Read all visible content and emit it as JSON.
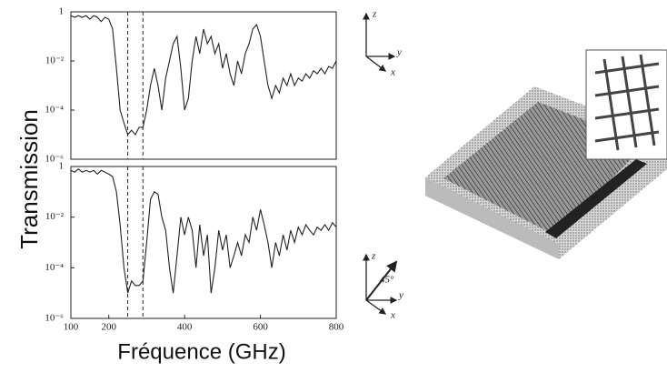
{
  "figure": {
    "ylabel": "Transmission",
    "xlabel": "Fréquence (GHz)"
  },
  "axes_icons": [
    {
      "labels": [
        "z",
        "y",
        "x"
      ]
    },
    {
      "labels": [
        "z",
        "45°",
        "y",
        "x"
      ]
    }
  ],
  "chart_data": [
    {
      "type": "line",
      "log_y": true,
      "xlim": [
        100,
        800
      ],
      "ylim": [
        1e-06,
        1
      ],
      "yticks": [
        1,
        {
          "value": 0.01,
          "label": "10⁻²"
        },
        {
          "value": 0.0001,
          "label": "10⁻⁴"
        },
        {
          "value": 1e-06,
          "label": "10⁻⁶"
        }
      ],
      "vlines": [
        250,
        290
      ],
      "x": [
        100,
        110,
        120,
        130,
        140,
        150,
        160,
        170,
        180,
        190,
        200,
        210,
        220,
        230,
        240,
        250,
        260,
        270,
        280,
        290,
        300,
        310,
        320,
        330,
        340,
        350,
        360,
        370,
        380,
        390,
        400,
        410,
        420,
        430,
        440,
        450,
        460,
        470,
        480,
        490,
        500,
        510,
        520,
        530,
        540,
        550,
        560,
        570,
        580,
        590,
        600,
        610,
        620,
        630,
        640,
        650,
        660,
        670,
        680,
        690,
        700,
        710,
        720,
        730,
        740,
        750,
        760,
        770,
        780,
        790,
        800
      ],
      "series": [
        {
          "color": "#222222",
          "values": [
            0.7,
            0.6,
            0.7,
            0.6,
            0.7,
            0.5,
            0.7,
            0.6,
            0.4,
            0.6,
            0.5,
            0.2,
            0.005,
            0.0001,
            3e-05,
            1e-05,
            1.5e-05,
            1e-05,
            2e-05,
            2e-05,
            0.0001,
            0.001,
            0.005,
            0.001,
            0.0001,
            0.002,
            0.01,
            0.05,
            0.1,
            0.005,
            0.0001,
            0.0003,
            0.01,
            0.1,
            0.02,
            0.2,
            0.05,
            0.1,
            0.02,
            0.05,
            0.005,
            0.02,
            0.003,
            0.001,
            0.01,
            0.003,
            0.02,
            0.05,
            0.2,
            0.3,
            0.1,
            0.01,
            0.001,
            0.0003,
            0.001,
            0.0005,
            0.002,
            0.001,
            0.003,
            0.001,
            0.002,
            0.0015,
            0.003,
            0.002,
            0.004,
            0.003,
            0.005,
            0.003,
            0.006,
            0.005,
            0.01
          ]
        }
      ]
    },
    {
      "type": "line",
      "log_y": true,
      "xlim": [
        100,
        800
      ],
      "ylim": [
        1e-06,
        1
      ],
      "yticks": [
        1,
        {
          "value": 0.01,
          "label": "10⁻²"
        },
        {
          "value": 0.0001,
          "label": "10⁻⁴"
        },
        {
          "value": 1e-06,
          "label": "10⁻⁶"
        }
      ],
      "xticks": [
        100,
        200,
        400,
        600,
        800
      ],
      "vlines": [
        250,
        290
      ],
      "x": [
        100,
        110,
        120,
        130,
        140,
        150,
        160,
        170,
        180,
        190,
        200,
        210,
        220,
        230,
        240,
        250,
        260,
        270,
        280,
        290,
        300,
        310,
        320,
        330,
        340,
        350,
        360,
        370,
        380,
        390,
        400,
        410,
        420,
        430,
        440,
        450,
        460,
        470,
        480,
        490,
        500,
        510,
        520,
        530,
        540,
        550,
        560,
        570,
        580,
        590,
        600,
        610,
        620,
        630,
        640,
        650,
        660,
        670,
        680,
        690,
        700,
        710,
        720,
        730,
        740,
        750,
        760,
        770,
        780,
        790,
        800
      ],
      "series": [
        {
          "color": "#222222",
          "values": [
            0.7,
            0.6,
            0.8,
            0.6,
            0.7,
            0.6,
            0.7,
            0.5,
            0.7,
            0.6,
            0.5,
            0.4,
            0.1,
            0.005,
            0.0001,
            1e-05,
            3e-05,
            2e-05,
            2e-05,
            3e-05,
            0.001,
            0.05,
            0.1,
            0.08,
            0.01,
            0.003,
            0.0001,
            1e-05,
            0.0003,
            0.01,
            0.002,
            0.01,
            0.003,
            0.0001,
            0.005,
            0.0003,
            0.002,
            1e-05,
            0.0001,
            0.003,
            0.0005,
            0.002,
            0.0001,
            0.0003,
            0.001,
            0.0003,
            0.002,
            0.001,
            0.01,
            0.003,
            0.02,
            0.005,
            0.001,
            0.0001,
            0.001,
            0.0003,
            0.002,
            0.0005,
            0.003,
            0.001,
            0.004,
            0.002,
            0.005,
            0.003,
            0.002,
            0.004,
            0.003,
            0.005,
            0.003,
            0.006,
            0.004
          ]
        }
      ]
    }
  ]
}
